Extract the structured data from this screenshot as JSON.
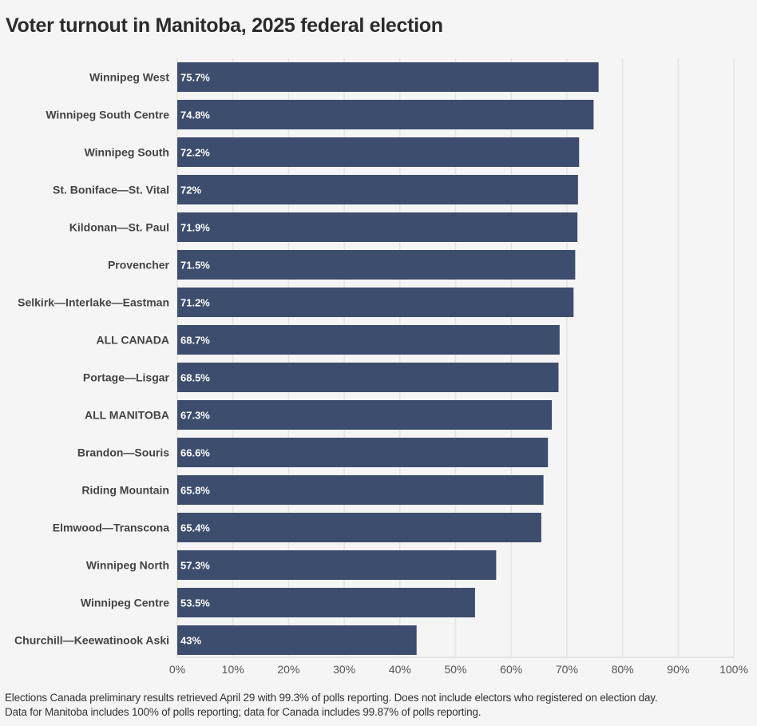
{
  "chart_data": {
    "type": "bar",
    "orientation": "horizontal",
    "title": "Voter turnout in Manitoba, 2025 federal election",
    "categories": [
      "Winnipeg West",
      "Winnipeg South Centre",
      "Winnipeg South",
      "St. Boniface—St. Vital",
      "Kildonan—St. Paul",
      "Provencher",
      "Selkirk—Interlake—Eastman",
      "ALL CANADA",
      "Portage—Lisgar",
      "ALL MANITOBA",
      "Brandon—Souris",
      "Riding Mountain",
      "Elmwood—Transcona",
      "Winnipeg North",
      "Winnipeg Centre",
      "Churchill—Keewatinook Aski"
    ],
    "values": [
      75.7,
      74.8,
      72.2,
      72,
      71.9,
      71.5,
      71.2,
      68.7,
      68.5,
      67.3,
      66.6,
      65.8,
      65.4,
      57.3,
      53.5,
      43
    ],
    "value_labels": [
      "75.7%",
      "74.8%",
      "72.2%",
      "72%",
      "71.9%",
      "71.5%",
      "71.2%",
      "68.7%",
      "68.5%",
      "67.3%",
      "66.6%",
      "65.8%",
      "65.4%",
      "57.3%",
      "53.5%",
      "43%"
    ],
    "xlim": [
      0,
      100
    ],
    "xticks": [
      0,
      10,
      20,
      30,
      40,
      50,
      60,
      70,
      80,
      90,
      100
    ],
    "xtick_labels": [
      "0%",
      "10%",
      "20%",
      "30%",
      "40%",
      "50%",
      "60%",
      "70%",
      "80%",
      "90%",
      "100%"
    ],
    "xlabel": "",
    "ylabel": "",
    "grid": true,
    "bar_color": "#3d4d6e"
  },
  "footnote": {
    "line1": "Elections Canada preliminary results retrieved April 29 with 99.3% of polls reporting. Does not include electors who registered on election day.",
    "line2": "Data for Manitoba includes 100% of polls reporting; data for Canada includes 99.87% of polls reporting."
  }
}
